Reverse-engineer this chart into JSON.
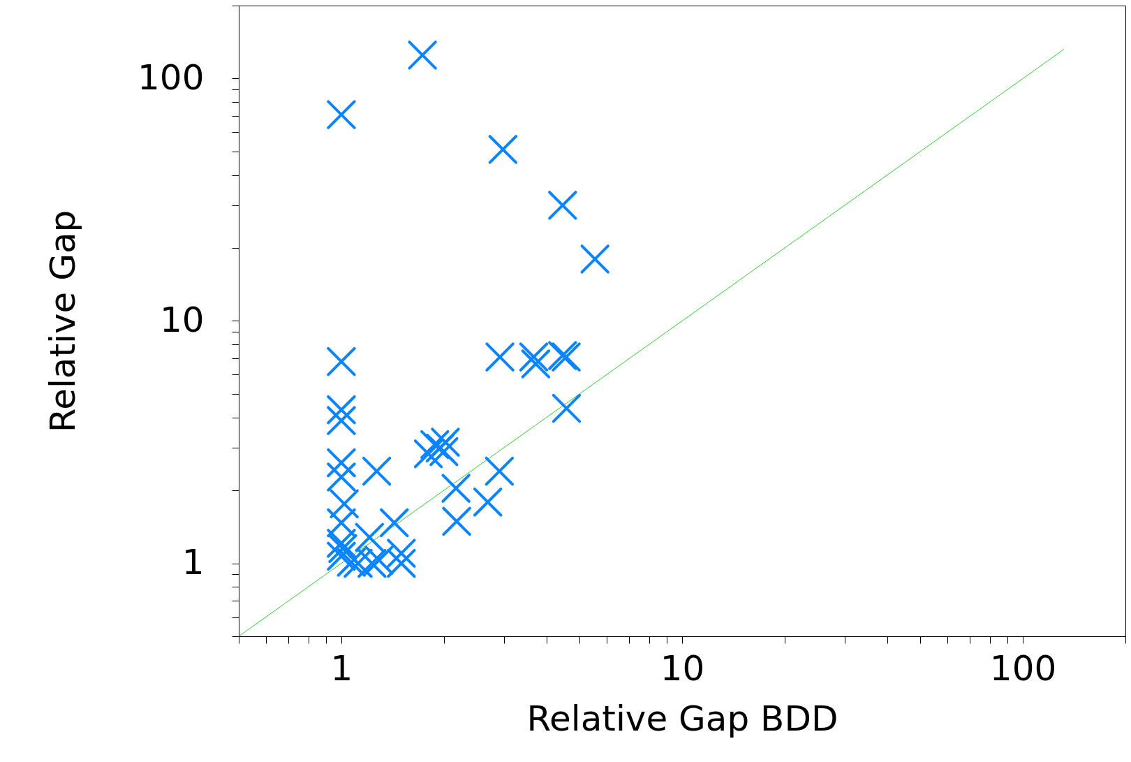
{
  "chart_data": {
    "type": "scatter",
    "xlabel": "Relative Gap BDD",
    "ylabel": "Relative Gap",
    "log": "xy",
    "grid": false,
    "marker": "cross",
    "xlim": [
      0.5,
      200
    ],
    "ylim": [
      0.5,
      200
    ],
    "xticks": [
      {
        "value": 0.5,
        "label": null
      },
      {
        "value": 0.6,
        "label": null
      },
      {
        "value": 0.7,
        "label": null
      },
      {
        "value": 0.8,
        "label": null
      },
      {
        "value": 0.9,
        "label": null
      },
      1,
      {
        "value": 2,
        "label": null
      },
      {
        "value": 3,
        "label": null
      },
      {
        "value": 4,
        "label": null
      },
      {
        "value": 5,
        "label": null
      },
      {
        "value": 6,
        "label": null
      },
      {
        "value": 7,
        "label": null
      },
      {
        "value": 8,
        "label": null
      },
      {
        "value": 9,
        "label": null
      },
      10,
      {
        "value": 20,
        "label": null
      },
      {
        "value": 30,
        "label": null
      },
      {
        "value": 40,
        "label": null
      },
      {
        "value": 50,
        "label": null
      },
      {
        "value": 60,
        "label": null
      },
      {
        "value": 70,
        "label": null
      },
      {
        "value": 80,
        "label": null
      },
      {
        "value": 90,
        "label": null
      },
      100,
      {
        "value": 200,
        "label": null
      }
    ],
    "yticks": [
      {
        "value": 0.5,
        "label": null
      },
      {
        "value": 0.6,
        "label": null
      },
      {
        "value": 0.7,
        "label": null
      },
      {
        "value": 0.8,
        "label": null
      },
      {
        "value": 0.9,
        "label": null
      },
      1,
      {
        "value": 2,
        "label": null
      },
      {
        "value": 3,
        "label": null
      },
      {
        "value": 4,
        "label": null
      },
      {
        "value": 5,
        "label": null
      },
      {
        "value": 6,
        "label": null
      },
      {
        "value": 7,
        "label": null
      },
      {
        "value": 8,
        "label": null
      },
      {
        "value": 9,
        "label": null
      },
      10,
      {
        "value": 20,
        "label": null
      },
      {
        "value": 30,
        "label": null
      },
      {
        "value": 40,
        "label": null
      },
      {
        "value": 50,
        "label": null
      },
      {
        "value": 60,
        "label": null
      },
      {
        "value": 70,
        "label": null
      },
      {
        "value": 80,
        "label": null
      },
      {
        "value": 90,
        "label": null
      },
      100,
      {
        "value": 200,
        "label": null
      }
    ],
    "series": [
      {
        "type": "line",
        "marker": "none",
        "color": "#33cc33",
        "x": [
          0.5,
          132
        ],
        "values": [
          0.5,
          132
        ]
      },
      {
        "color": "#0a84ff",
        "x": [
          1.73,
          1.0,
          2.98,
          4.46,
          5.55,
          1.0,
          2.92,
          3.67,
          3.72,
          4.46,
          4.57,
          4.58,
          1.0,
          1.0,
          1.0,
          1.0,
          1.27,
          1.8,
          1.88,
          2.02,
          2.0,
          1.95,
          2.91,
          2.17,
          2.69,
          2.18,
          1.02,
          1.0,
          1.43,
          1.21,
          1.0,
          1.0,
          1.01,
          1.07,
          1.12,
          1.23,
          1.29,
          1.5,
          1.5
        ],
        "values": [
          125,
          71,
          51,
          30,
          18,
          6.8,
          7.1,
          7.1,
          6.65,
          7.2,
          7.1,
          4.36,
          4.3,
          3.88,
          2.6,
          2.27,
          2.4,
          2.83,
          3.09,
          3.16,
          2.89,
          2.99,
          2.4,
          2.04,
          1.79,
          1.49,
          1.76,
          1.47,
          1.47,
          1.28,
          1.21,
          1.07,
          1.15,
          1.01,
          1.0,
          1.0,
          1.03,
          1.1,
          1.0
        ]
      }
    ]
  }
}
